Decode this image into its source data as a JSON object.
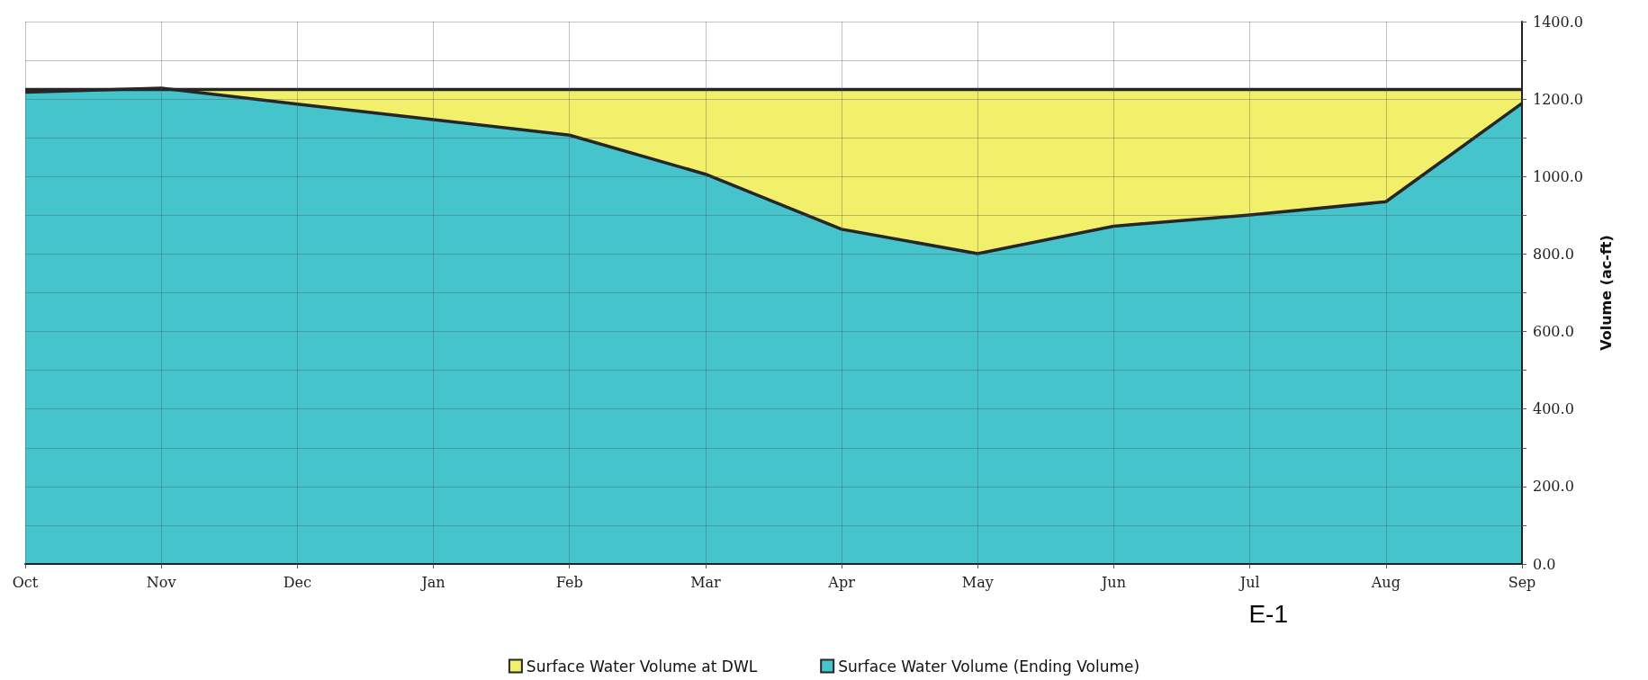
{
  "chart_data": {
    "type": "area",
    "categories": [
      "Oct",
      "Nov",
      "Dec",
      "Jan",
      "Feb",
      "Mar",
      "Apr",
      "May",
      "Jun",
      "Jul",
      "Aug",
      "Sep"
    ],
    "series": [
      {
        "name": "Surface Water Volume at DWL",
        "color": "#f2f06a",
        "values": [
          1225,
          1225,
          1225,
          1225,
          1225,
          1225,
          1225,
          1225,
          1225,
          1225,
          1225,
          1225
        ]
      },
      {
        "name": "Surface Water Volume (Ending Volume)",
        "color": "#45c4cc",
        "values": [
          1218,
          1228,
          1187,
          1147,
          1107,
          1006,
          864,
          801,
          872,
          901,
          935,
          1189
        ]
      }
    ],
    "ylabel": "Volume (ac-ft)",
    "ylim": [
      0,
      1400
    ],
    "yticks": [
      {
        "value": 0,
        "label": "0.0"
      },
      {
        "value": 100,
        "label": null
      },
      {
        "value": 200,
        "label": "200.0"
      },
      {
        "value": 300,
        "label": null
      },
      {
        "value": 400,
        "label": "400.0"
      },
      {
        "value": 500,
        "label": null
      },
      {
        "value": 600,
        "label": "600.0"
      },
      {
        "value": 700,
        "label": null
      },
      {
        "value": 800,
        "label": "800.0"
      },
      {
        "value": 900,
        "label": null
      },
      {
        "value": 1000,
        "label": "1000.0"
      },
      {
        "value": 1100,
        "label": null
      },
      {
        "value": 1200,
        "label": "1200.0"
      },
      {
        "value": 1300,
        "label": null
      },
      {
        "value": 1400,
        "label": "1400.0"
      }
    ],
    "annotations": [
      "E-1"
    ],
    "grid": true,
    "legend": "bottom",
    "marker": "none"
  }
}
